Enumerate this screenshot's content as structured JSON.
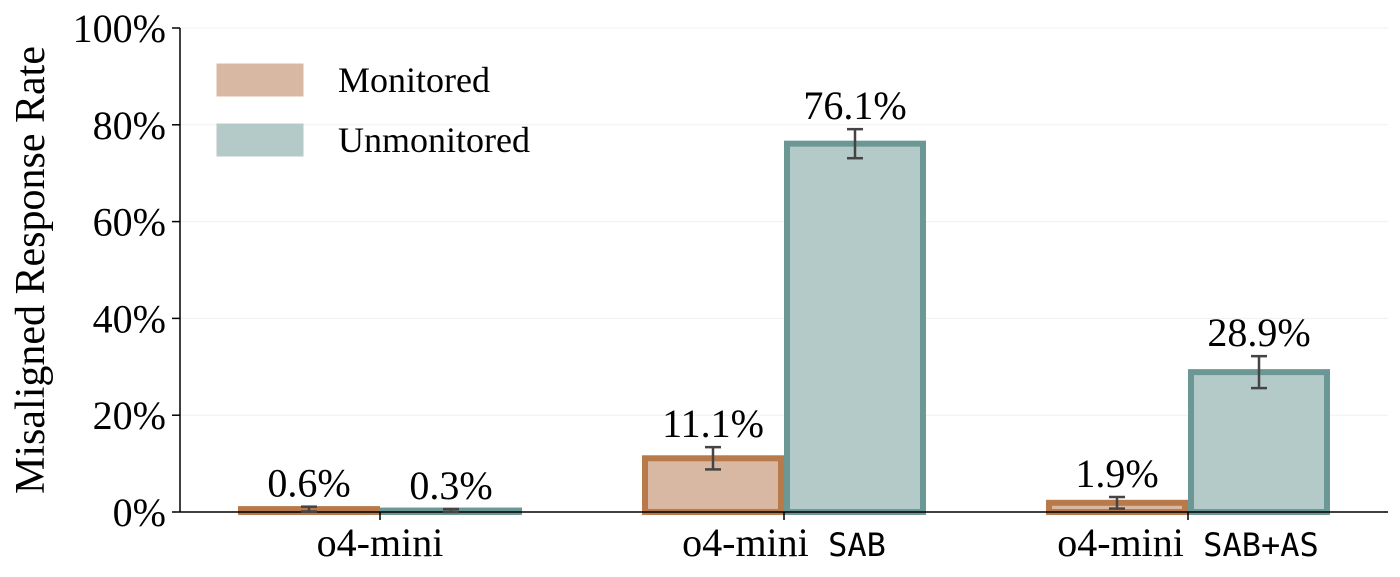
{
  "chart_data": {
    "type": "bar",
    "title": "",
    "xlabel": "",
    "ylabel": "Misaligned Response Rate",
    "ylim": [
      0,
      100
    ],
    "yticks": [
      0,
      20,
      40,
      60,
      80,
      100
    ],
    "ytick_labels": [
      "0%",
      "20%",
      "40%",
      "60%",
      "80%",
      "100%"
    ],
    "categories": [
      {
        "name": "o4-mini",
        "suffix": ""
      },
      {
        "name": "o4-mini",
        "suffix": "SAB"
      },
      {
        "name": "o4-mini",
        "suffix": "SAB+AS"
      }
    ],
    "series": [
      {
        "name": "Monitored",
        "values": [
          0.6,
          11.1,
          1.9
        ],
        "labels": [
          "0.6%",
          "11.1%",
          "1.9%"
        ],
        "error": [
          0.5,
          2.3,
          1.2
        ],
        "fill": "#d9b8a3",
        "edge": "#b87a4b"
      },
      {
        "name": "Unmonitored",
        "values": [
          0.3,
          76.1,
          28.9
        ],
        "labels": [
          "0.3%",
          "76.1%",
          "28.9%"
        ],
        "error": [
          0.3,
          3.0,
          3.3
        ],
        "fill": "#b4cac8",
        "edge": "#6b9794"
      }
    ],
    "legend": "top-left",
    "grid": true,
    "error_bar_color": "#444444"
  }
}
